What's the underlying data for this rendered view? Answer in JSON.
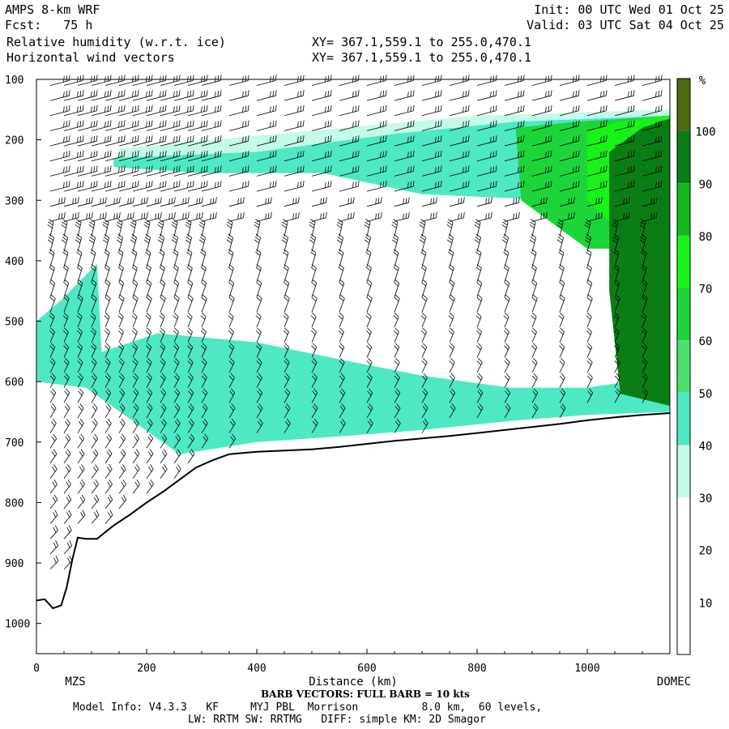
{
  "header": {
    "model": "AMPS 8-km WRF",
    "forecast": "Fcst:   75 h",
    "field1": "Relative humidity (w.r.t. ice)",
    "field2": "Horizontal wind vectors",
    "xy1": "XY= 367.1,559.1 to 255.0,470.1",
    "xy2": "XY= 367.1,559.1 to 255.0,470.1",
    "init": "Init: 00 UTC Wed 01 Oct 25",
    "valid": "Valid: 03 UTC Sat 04 Oct 25"
  },
  "footer": {
    "barb_note": "BARB VECTORS: FULL BARB = 10 kts",
    "model_info": "Model Info: V4.3.3   KF     MYJ PBL  Morrison          8.0 km,  60 levels,",
    "physics": "LW: RRTM SW: RRTMG   DIFF: simple KM: 2D Smagor"
  },
  "colors": {
    "rh_30_40": "#c4fae8",
    "rh_40_50": "#4ee8c4",
    "rh_50_60": "#4ee06e",
    "rh_60_70": "#1cd53a",
    "rh_70_80": "#18f218",
    "rh_80_90": "#12b81e",
    "rh_90_100": "#0a7d14",
    "rh_100plus": "#4a6b10",
    "terrain_line": "#000000"
  },
  "chart_data": {
    "type": "heatmap",
    "xlabel": "Distance (km)",
    "ylabel": "",
    "xlim": [
      0,
      1150
    ],
    "ylim": [
      1050,
      100
    ],
    "x_ticks": [
      0,
      200,
      400,
      600,
      800,
      1000
    ],
    "y_ticks": [
      100,
      200,
      300,
      400,
      500,
      600,
      700,
      800,
      900,
      1000
    ],
    "endpoints": {
      "left": "MZS",
      "right": "DOMEC"
    },
    "colorbar": {
      "unit": "%",
      "levels": [
        10,
        20,
        30,
        40,
        50,
        60,
        70,
        80,
        90,
        100
      ]
    },
    "terrain": {
      "x": [
        0,
        15,
        30,
        45,
        55,
        65,
        75,
        90,
        110,
        140,
        170,
        200,
        230,
        260,
        290,
        320,
        350,
        400,
        450,
        500,
        550,
        600,
        650,
        700,
        750,
        800,
        850,
        900,
        950,
        1000,
        1050,
        1100,
        1150
      ],
      "p": [
        962,
        960,
        975,
        970,
        940,
        895,
        858,
        860,
        860,
        838,
        820,
        800,
        782,
        762,
        742,
        730,
        720,
        716,
        714,
        712,
        708,
        703,
        698,
        694,
        690,
        685,
        680,
        675,
        670,
        664,
        659,
        655,
        652
      ]
    },
    "moist_regions": [
      {
        "level": "30-40",
        "x": [
          150,
          320,
          620,
          800,
          1150,
          1150,
          800,
          560,
          300,
          150
        ],
        "p": [
          215,
          200,
          175,
          160,
          150,
          225,
          250,
          245,
          240,
          245
        ]
      },
      {
        "level": "40-50",
        "x": [
          140,
          400,
          650,
          870,
          1150,
          1150,
          950,
          700,
          520,
          300,
          140
        ],
        "p": [
          230,
          220,
          190,
          170,
          160,
          350,
          300,
          290,
          255,
          255,
          245
        ]
      },
      {
        "level": "40-50",
        "x": [
          0,
          90,
          220,
          400,
          560,
          700,
          860,
          1000,
          1150,
          1150,
          1000,
          860,
          700,
          560,
          400,
          260,
          90,
          0
        ],
        "p": [
          545,
          560,
          520,
          535,
          565,
          590,
          610,
          610,
          590,
          650,
          655,
          665,
          680,
          690,
          700,
          720,
          610,
          600
        ]
      },
      {
        "level": "40-50",
        "x": [
          0,
          45,
          110,
          120,
          45,
          0
        ],
        "p": [
          500,
          465,
          405,
          580,
          590,
          590
        ]
      },
      {
        "level": "60-70",
        "x": [
          870,
          980,
          1150,
          1150,
          1000,
          880
        ],
        "p": [
          180,
          170,
          160,
          380,
          380,
          300
        ]
      },
      {
        "level": "70-80",
        "x": [
          1000,
          1060,
          1150,
          1150,
          1070,
          1000
        ],
        "p": [
          185,
          170,
          160,
          390,
          360,
          300
        ]
      },
      {
        "level": "90-100",
        "x": [
          1040,
          1100,
          1150,
          1150,
          1060,
          1040
        ],
        "p": [
          220,
          180,
          165,
          640,
          620,
          450
        ]
      }
    ],
    "wind_columns_x": [
      0,
      25,
      50,
      75,
      100,
      125,
      150,
      175,
      200,
      225,
      250,
      275,
      300,
      350,
      400,
      450,
      500,
      550,
      600,
      650,
      700,
      750,
      800,
      850,
      900,
      950,
      1000,
      1050,
      1100,
      1150
    ],
    "wind_levels_p": [
      110,
      135,
      160,
      185,
      210,
      235,
      260,
      285,
      310,
      335,
      360,
      385,
      410,
      435,
      460,
      485,
      510,
      535,
      560,
      585,
      610,
      635,
      660,
      685,
      710,
      735,
      760,
      785,
      810,
      835,
      860,
      885,
      910
    ]
  }
}
